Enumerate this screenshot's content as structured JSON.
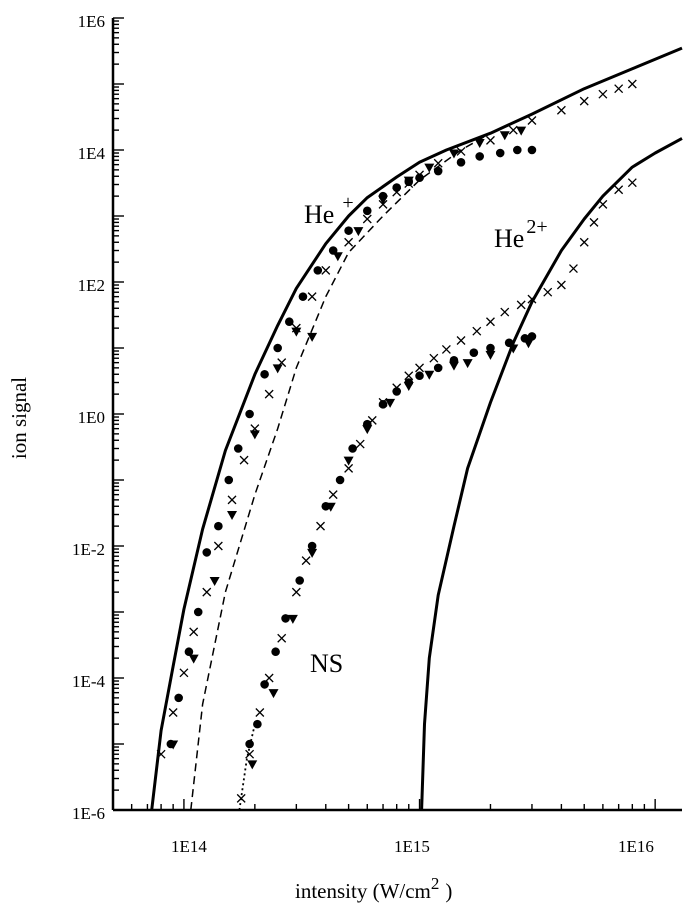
{
  "chart_data": {
    "type": "scatter",
    "title": "",
    "xlabel": "intensity (W/cm",
    "xlabel_sup": "2",
    "xlabel_close": ")",
    "ylabel": "ion signal",
    "xscale": "log",
    "yscale": "log",
    "xlim": [
      50000000000000.0,
      1.3e+16
    ],
    "ylim": [
      1e-06,
      1000000.0
    ],
    "x_ticks": [
      {
        "value": 100000000000000.0,
        "label": "1E14"
      },
      {
        "value": 1000000000000000.0,
        "label": "1E15"
      },
      {
        "value": 1e+16,
        "label": "1E16"
      }
    ],
    "y_ticks": [
      {
        "value": 1e-06,
        "label": "1E-6"
      },
      {
        "value": 0.0001,
        "label": "1E-4"
      },
      {
        "value": 0.01,
        "label": "1E-2"
      },
      {
        "value": 1,
        "label": "1E0"
      },
      {
        "value": 100,
        "label": "1E2"
      },
      {
        "value": 10000,
        "label": "1E4"
      },
      {
        "value": 1000000,
        "label": "1E6"
      }
    ],
    "grid": false,
    "annotations": [
      {
        "base": "He",
        "sup": "+"
      },
      {
        "base": "He",
        "sup": "2+"
      },
      {
        "base": "NS",
        "sup": ""
      }
    ],
    "curves": [
      {
        "style": "solid",
        "points": [
          [
            73000000000000.0,
            1e-06
          ],
          [
            80000000000000.0,
            1.6e-05
          ],
          [
            90000000000000.0,
            0.00015
          ],
          [
            100000000000000.0,
            0.0011
          ],
          [
            120000000000000.0,
            0.018
          ],
          [
            150000000000000.0,
            0.28
          ],
          [
            200000000000000.0,
            4
          ],
          [
            250000000000000.0,
            22
          ],
          [
            300000000000000.0,
            80
          ],
          [
            400000000000000.0,
            380
          ],
          [
            500000000000000.0,
            1000
          ],
          [
            600000000000000.0,
            1900
          ],
          [
            800000000000000.0,
            3900
          ],
          [
            1000000000000000.0,
            6500
          ],
          [
            1300000000000000.0,
            10000
          ],
          [
            2000000000000000.0,
            18000
          ],
          [
            3000000000000000.0,
            35000
          ],
          [
            5000000000000000.0,
            85000
          ],
          [
            8000000000000000.0,
            170000
          ],
          [
            1.3e+16,
            350000
          ]
        ]
      },
      {
        "style": "solid",
        "points": [
          [
            1020000000000000.0,
            1e-06
          ],
          [
            1050000000000000.0,
            2e-05
          ],
          [
            1100000000000000.0,
            0.0002
          ],
          [
            1200000000000000.0,
            0.0018
          ],
          [
            1400000000000000.0,
            0.02
          ],
          [
            1600000000000000.0,
            0.15
          ],
          [
            2000000000000000.0,
            1.5
          ],
          [
            2500000000000000.0,
            12
          ],
          [
            3000000000000000.0,
            50
          ],
          [
            4000000000000000.0,
            300
          ],
          [
            5000000000000000.0,
            900
          ],
          [
            6000000000000000.0,
            2000
          ],
          [
            8000000000000000.0,
            5500
          ],
          [
            1e+16,
            9000
          ],
          [
            1.3e+16,
            15000
          ]
        ]
      },
      {
        "style": "dashed",
        "points": [
          [
            107000000000000.0,
            1e-06
          ],
          [
            120000000000000.0,
            4e-05
          ],
          [
            150000000000000.0,
            0.002
          ],
          [
            200000000000000.0,
            0.06
          ],
          [
            250000000000000.0,
            0.6
          ],
          [
            300000000000000.0,
            5
          ],
          [
            400000000000000.0,
            60
          ],
          [
            500000000000000.0,
            280
          ],
          [
            700000000000000.0,
            1000
          ],
          [
            1000000000000000.0,
            3500
          ],
          [
            1500000000000000.0,
            10000
          ],
          [
            2000000000000000.0,
            18000
          ]
        ]
      },
      {
        "style": "dotted",
        "points": [
          [
            172000000000000.0,
            1e-06
          ],
          [
            185000000000000.0,
            6e-06
          ],
          [
            200000000000000.0,
            2e-05
          ]
        ]
      }
    ],
    "series": [
      {
        "marker": "cross",
        "points": [
          [
            80000000000000.0,
            7e-06
          ],
          [
            90000000000000.0,
            3e-05
          ],
          [
            100000000000000.0,
            0.00012
          ],
          [
            110000000000000.0,
            0.0005
          ],
          [
            125000000000000.0,
            0.002
          ],
          [
            140000000000000.0,
            0.01
          ],
          [
            160000000000000.0,
            0.05
          ],
          [
            180000000000000.0,
            0.2
          ],
          [
            200000000000000.0,
            0.6
          ],
          [
            230000000000000.0,
            2
          ],
          [
            260000000000000.0,
            6
          ],
          [
            300000000000000.0,
            20
          ],
          [
            350000000000000.0,
            60
          ],
          [
            400000000000000.0,
            150
          ],
          [
            500000000000000.0,
            400
          ],
          [
            600000000000000.0,
            900
          ],
          [
            700000000000000.0,
            1500
          ],
          [
            800000000000000.0,
            2300
          ],
          [
            900000000000000.0,
            3100
          ],
          [
            1000000000000000.0,
            4200
          ],
          [
            1200000000000000.0,
            6300
          ],
          [
            1500000000000000.0,
            9500
          ],
          [
            2000000000000000.0,
            14000
          ],
          [
            2500000000000000.0,
            20000
          ],
          [
            3000000000000000.0,
            28000
          ],
          [
            4000000000000000.0,
            40000
          ],
          [
            5000000000000000.0,
            55000
          ],
          [
            6000000000000000.0,
            70000
          ],
          [
            7000000000000000.0,
            85000
          ],
          [
            8000000000000000.0,
            100000
          ]
        ]
      },
      {
        "marker": "circle",
        "points": [
          [
            88000000000000.0,
            1e-05
          ],
          [
            95000000000000.0,
            5e-05
          ],
          [
            105000000000000.0,
            0.00025
          ],
          [
            115000000000000.0,
            0.001
          ],
          [
            125000000000000.0,
            0.008
          ],
          [
            140000000000000.0,
            0.02
          ],
          [
            155000000000000.0,
            0.1
          ],
          [
            170000000000000.0,
            0.3
          ],
          [
            190000000000000.0,
            1
          ],
          [
            220000000000000.0,
            4
          ],
          [
            250000000000000.0,
            10
          ],
          [
            280000000000000.0,
            25
          ],
          [
            320000000000000.0,
            60
          ],
          [
            370000000000000.0,
            150
          ],
          [
            430000000000000.0,
            300
          ],
          [
            500000000000000.0,
            600
          ],
          [
            600000000000000.0,
            1200
          ],
          [
            700000000000000.0,
            2000
          ],
          [
            800000000000000.0,
            2700
          ],
          [
            900000000000000.0,
            3300
          ],
          [
            1000000000000000.0,
            3800
          ],
          [
            1200000000000000.0,
            4800
          ],
          [
            1500000000000000.0,
            6500
          ],
          [
            1800000000000000.0,
            8000
          ],
          [
            2200000000000000.0,
            9000
          ],
          [
            2600000000000000.0,
            10000
          ],
          [
            3000000000000000.0,
            10000
          ]
        ]
      },
      {
        "marker": "triangle",
        "points": [
          [
            90000000000000.0,
            1e-05
          ],
          [
            110000000000000.0,
            0.0002
          ],
          [
            135000000000000.0,
            0.003
          ],
          [
            160000000000000.0,
            0.03
          ],
          [
            200000000000000.0,
            0.5
          ],
          [
            250000000000000.0,
            5
          ],
          [
            300000000000000.0,
            18
          ],
          [
            350000000000000.0,
            15
          ],
          [
            450000000000000.0,
            250
          ],
          [
            550000000000000.0,
            600
          ],
          [
            700000000000000.0,
            1800
          ],
          [
            900000000000000.0,
            3500
          ],
          [
            1100000000000000.0,
            5500
          ],
          [
            1400000000000000.0,
            9000
          ],
          [
            1800000000000000.0,
            13000
          ],
          [
            2300000000000000.0,
            17000
          ],
          [
            2700000000000000.0,
            20000
          ]
        ]
      },
      {
        "marker": "cross",
        "points": [
          [
            175000000000000.0,
            1.5e-06
          ],
          [
            190000000000000.0,
            7e-06
          ],
          [
            210000000000000.0,
            3e-05
          ],
          [
            230000000000000.0,
            0.0001
          ],
          [
            260000000000000.0,
            0.0004
          ],
          [
            300000000000000.0,
            0.002
          ],
          [
            330000000000000.0,
            0.006
          ],
          [
            380000000000000.0,
            0.02
          ],
          [
            430000000000000.0,
            0.06
          ],
          [
            500000000000000.0,
            0.15
          ],
          [
            560000000000000.0,
            0.35
          ],
          [
            630000000000000.0,
            0.8
          ],
          [
            700000000000000.0,
            1.5
          ],
          [
            800000000000000.0,
            2.5
          ],
          [
            900000000000000.0,
            3.8
          ],
          [
            1000000000000000.0,
            5
          ],
          [
            1150000000000000.0,
            7
          ],
          [
            1300000000000000.0,
            9.5
          ],
          [
            1500000000000000.0,
            13
          ],
          [
            1750000000000000.0,
            18
          ],
          [
            2000000000000000.0,
            25
          ],
          [
            2300000000000000.0,
            35
          ],
          [
            2700000000000000.0,
            45
          ],
          [
            3000000000000000.0,
            55
          ],
          [
            3500000000000000.0,
            70
          ],
          [
            4000000000000000.0,
            90
          ],
          [
            4500000000000000.0,
            160
          ],
          [
            5000000000000000.0,
            400
          ],
          [
            5500000000000000.0,
            800
          ],
          [
            6000000000000000.0,
            1500
          ],
          [
            7000000000000000.0,
            2500
          ],
          [
            8000000000000000.0,
            3200
          ]
        ]
      },
      {
        "marker": "circle",
        "points": [
          [
            190000000000000.0,
            1e-05
          ],
          [
            205000000000000.0,
            2e-05
          ],
          [
            220000000000000.0,
            8e-05
          ],
          [
            245000000000000.0,
            0.00025
          ],
          [
            270000000000000.0,
            0.0008
          ],
          [
            310000000000000.0,
            0.003
          ],
          [
            350000000000000.0,
            0.01
          ],
          [
            400000000000000.0,
            0.04
          ],
          [
            460000000000000.0,
            0.1
          ],
          [
            520000000000000.0,
            0.3
          ],
          [
            600000000000000.0,
            0.7
          ],
          [
            700000000000000.0,
            1.4
          ],
          [
            800000000000000.0,
            2.2
          ],
          [
            900000000000000.0,
            3
          ],
          [
            1000000000000000.0,
            3.8
          ],
          [
            1200000000000000.0,
            5
          ],
          [
            1400000000000000.0,
            6.5
          ],
          [
            1700000000000000.0,
            8.5
          ],
          [
            2000000000000000.0,
            10
          ],
          [
            2400000000000000.0,
            12
          ],
          [
            2800000000000000.0,
            14
          ],
          [
            3000000000000000.0,
            15
          ]
        ]
      },
      {
        "marker": "triangle",
        "points": [
          [
            195000000000000.0,
            5e-06
          ],
          [
            240000000000000.0,
            6e-05
          ],
          [
            290000000000000.0,
            0.0008
          ],
          [
            350000000000000.0,
            0.008
          ],
          [
            420000000000000.0,
            0.04
          ],
          [
            500000000000000.0,
            0.2
          ],
          [
            600000000000000.0,
            0.6
          ],
          [
            750000000000000.0,
            1.5
          ],
          [
            900000000000000.0,
            2.7
          ],
          [
            1100000000000000.0,
            4
          ],
          [
            1400000000000000.0,
            5.5
          ],
          [
            1600000000000000.0,
            6
          ],
          [
            2000000000000000.0,
            8
          ],
          [
            2500000000000000.0,
            10
          ],
          [
            2900000000000000.0,
            12
          ]
        ]
      }
    ]
  }
}
